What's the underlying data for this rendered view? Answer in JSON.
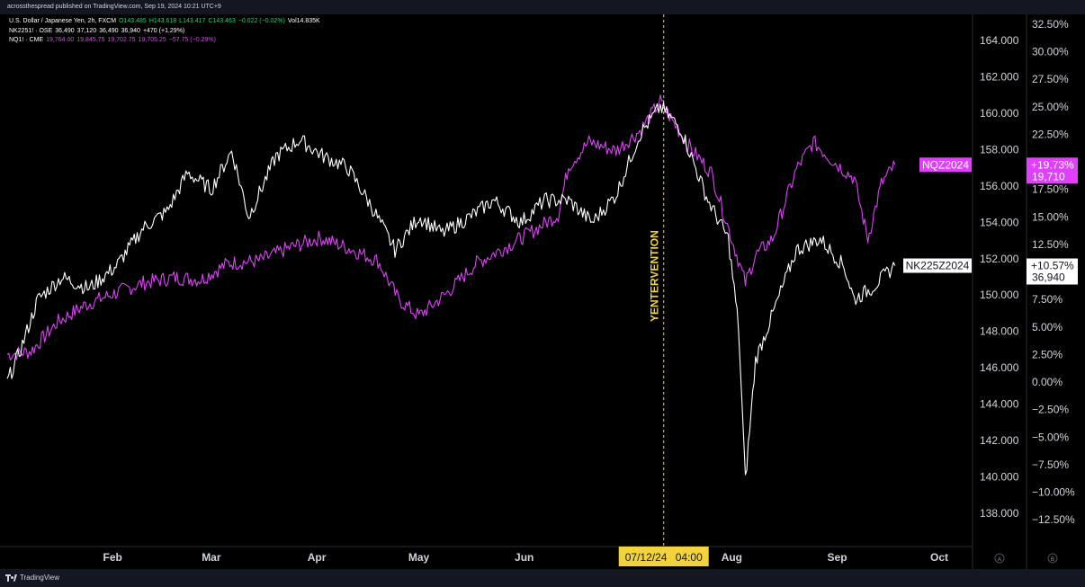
{
  "header": {
    "publisher": "acrossthespread published on TradingView.com, Sep 19, 2024 10:21 UTC+9",
    "legend": [
      {
        "symbol": "U.S. Dollar / Japanese Yen, 2h, FXCM",
        "fields": [
          "O143.485",
          "H143.618",
          "L143.417",
          "C143.463",
          "−0.022 (−0.02%)"
        ],
        "extra": "Vol14.835K"
      },
      {
        "symbol": "NK2251! · OSE",
        "fields": [
          "36,490",
          "37,120",
          "36,490",
          "36,940",
          "+470 (+1.29%)"
        ]
      },
      {
        "symbol": "NQ1! · CME",
        "fields": [
          "19,764.00",
          "19,845.75",
          "19,702.75",
          "19,705.25",
          "−57.75 (−0.29%)"
        ]
      }
    ]
  },
  "chart_data": {
    "type": "line",
    "x_axis": {
      "labels": [
        "Feb",
        "Mar",
        "Apr",
        "May",
        "Jun",
        "Jul",
        "Aug",
        "Sep",
        "Oct"
      ],
      "range": [
        "2024-01-01",
        "2024-10-15"
      ]
    },
    "left_axis_label": "USD/JPY",
    "y_axis_price": {
      "ticks": [
        "138.000",
        "140.000",
        "142.000",
        "144.000",
        "146.000",
        "148.000",
        "150.000",
        "152.000",
        "154.000",
        "156.000",
        "158.000",
        "160.000",
        "162.000",
        "164.000"
      ],
      "range": [
        136.0,
        165.0
      ]
    },
    "y_axis_percent": {
      "ticks": [
        "−12.50%",
        "−10.00%",
        "−7.50%",
        "−5.00%",
        "−2.50%",
        "0.00%",
        "2.50%",
        "5.00%",
        "7.50%",
        "10.00%",
        "12.50%",
        "15.00%",
        "17.50%",
        "20.00%",
        "22.50%",
        "25.00%",
        "27.50%",
        "30.00%",
        "32.50%"
      ]
    },
    "series": [
      {
        "name": "NQZ2024",
        "color": "#e040fb",
        "x": [
          "2024-01-01",
          "2024-01-08",
          "2024-01-16",
          "2024-01-24",
          "2024-02-01",
          "2024-02-10",
          "2024-02-19",
          "2024-02-27",
          "2024-03-06",
          "2024-03-15",
          "2024-03-24",
          "2024-04-02",
          "2024-04-10",
          "2024-04-19",
          "2024-04-25",
          "2024-05-01",
          "2024-05-09",
          "2024-05-18",
          "2024-05-28",
          "2024-06-05",
          "2024-06-11",
          "2024-06-14",
          "2024-06-20",
          "2024-06-28",
          "2024-07-05",
          "2024-07-11",
          "2024-07-15",
          "2024-07-20",
          "2024-07-26",
          "2024-08-02",
          "2024-08-05",
          "2024-08-08",
          "2024-08-13",
          "2024-08-20",
          "2024-08-25",
          "2024-08-31",
          "2024-09-06",
          "2024-09-10",
          "2024-09-14",
          "2024-09-18"
        ],
        "values": [
          2.5,
          2.8,
          5.5,
          7.0,
          8.0,
          9.0,
          9.5,
          9.3,
          10.8,
          11.0,
          12.2,
          13.1,
          12.2,
          11.0,
          7.5,
          6.0,
          8.0,
          10.8,
          12.5,
          14.0,
          15.2,
          19.6,
          21.8,
          21.0,
          22.8,
          25.5,
          23.5,
          21.2,
          19.0,
          12.0,
          9.0,
          11.5,
          13.0,
          19.3,
          21.8,
          20.0,
          18.5,
          13.0,
          18.0,
          19.73
        ]
      },
      {
        "name": "NK225Z2024",
        "color": "#ffffff",
        "x": [
          "2024-01-01",
          "2024-01-05",
          "2024-01-10",
          "2024-01-17",
          "2024-01-25",
          "2024-02-02",
          "2024-02-10",
          "2024-02-17",
          "2024-02-23",
          "2024-03-01",
          "2024-03-07",
          "2024-03-12",
          "2024-03-20",
          "2024-03-27",
          "2024-04-03",
          "2024-04-10",
          "2024-04-17",
          "2024-04-24",
          "2024-05-01",
          "2024-05-08",
          "2024-05-16",
          "2024-05-23",
          "2024-05-31",
          "2024-06-07",
          "2024-06-14",
          "2024-06-21",
          "2024-06-28",
          "2024-07-05",
          "2024-07-11",
          "2024-07-17",
          "2024-07-25",
          "2024-07-31",
          "2024-08-03",
          "2024-08-05",
          "2024-08-08",
          "2024-08-14",
          "2024-08-20",
          "2024-08-27",
          "2024-09-03",
          "2024-09-06",
          "2024-09-11",
          "2024-09-16",
          "2024-09-18"
        ],
        "values": [
          0.0,
          3.0,
          7.5,
          9.5,
          8.5,
          10.5,
          14.0,
          15.5,
          19.0,
          17.5,
          21.0,
          15.0,
          20.5,
          22.0,
          20.5,
          19.5,
          16.0,
          12.0,
          15.0,
          13.5,
          15.0,
          16.5,
          14.5,
          16.5,
          16.5,
          14.5,
          17.0,
          22.5,
          25.0,
          23.0,
          16.5,
          13.0,
          5.0,
          -9.0,
          2.0,
          7.0,
          12.0,
          13.0,
          10.5,
          7.5,
          8.5,
          10.0,
          10.57
        ]
      }
    ],
    "annotation": {
      "text": "YENTERVENTION",
      "date": "2024-07-12"
    },
    "crosshair": {
      "date_label": "07/12/24",
      "time_label": "04:00"
    },
    "badges": [
      {
        "series": "NQZ2024",
        "pct": "+19.73%",
        "value": "19,710"
      },
      {
        "series": "NK225Z2024",
        "pct": "+10.57%",
        "value": "36,940"
      }
    ],
    "scale_buttons": [
      "A",
      "B"
    ]
  },
  "footer": {
    "brand": "TradingView"
  }
}
